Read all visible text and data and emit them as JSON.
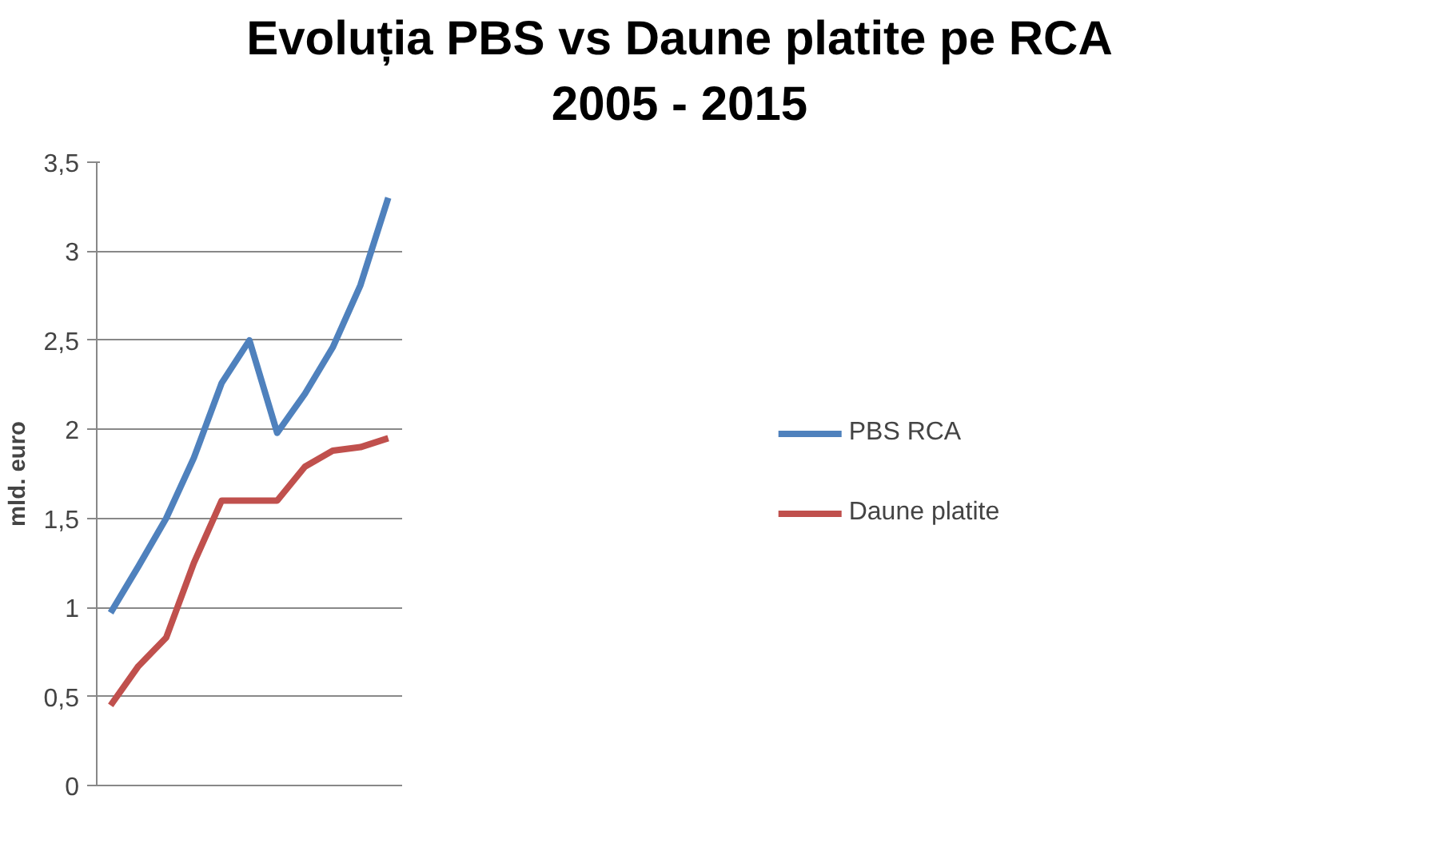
{
  "chart_data": {
    "type": "line",
    "title": "Evoluția PBS vs Daune platite pe RCA\n2005 - 2015",
    "ylabel": "mld. euro",
    "categories": [
      null,
      null,
      null,
      null,
      null,
      null,
      null,
      null,
      null,
      null,
      null
    ],
    "series": [
      {
        "name": "PBS RCA",
        "color": "#4f81bd",
        "values": [
          0.97,
          1.23,
          1.5,
          1.84,
          2.26,
          2.5,
          1.98,
          2.2,
          2.46,
          2.81,
          3.3
        ]
      },
      {
        "name": "Daune platite",
        "color": "#c0504d",
        "values": [
          0.45,
          0.67,
          0.83,
          1.25,
          1.6,
          1.6,
          1.6,
          1.79,
          1.88,
          1.9,
          1.95
        ]
      }
    ],
    "ylim": [
      0,
      3.5
    ],
    "yticks": [
      0,
      {
        "value": 0.5,
        "label": "0,5"
      },
      1,
      {
        "value": 1.5,
        "label": "1,5"
      },
      2,
      {
        "value": 2.5,
        "label": "2,5"
      },
      3,
      {
        "value": 3.5,
        "label": "3,5"
      }
    ],
    "grid": "y",
    "legend": "right",
    "marker": "none",
    "line_style": "solid"
  }
}
